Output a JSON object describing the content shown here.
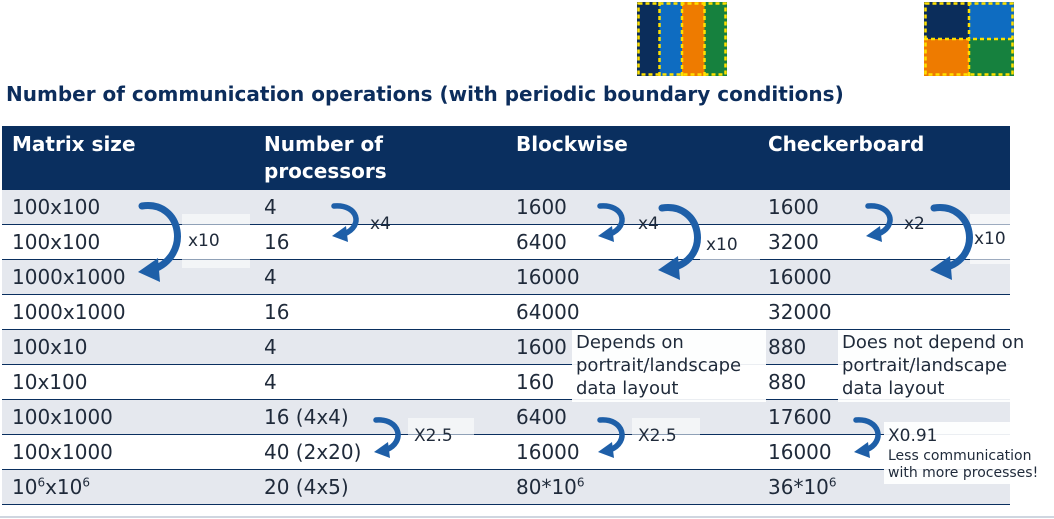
{
  "title": "Number of communication operations (with periodic boundary conditions)",
  "colors": {
    "header_bg": "#0a2f5f",
    "row_alt": "#e5e8ee",
    "arrow": "#1e5fa8",
    "blue_dark": "#0b2d5b",
    "blue": "#0e6cc1",
    "orange": "#ee7b00",
    "green": "#16813e",
    "yellow": "#ffe000"
  },
  "icons": {
    "blockwise": "blockwise-strips-icon",
    "checkerboard": "checkerboard-grid-icon"
  },
  "table": {
    "headers": [
      "Matrix size",
      "Number of processors",
      "Blockwise",
      "Checkerboard"
    ],
    "rows": [
      {
        "matrix": "100x100",
        "procs": "4",
        "blockwise": "1600",
        "checkerboard": "1600"
      },
      {
        "matrix": "100x100",
        "procs": "16",
        "blockwise": "6400",
        "checkerboard": "3200"
      },
      {
        "matrix": "1000x1000",
        "procs": "4",
        "blockwise": "16000",
        "checkerboard": "16000"
      },
      {
        "matrix": "1000x1000",
        "procs": "16",
        "blockwise": "64000",
        "checkerboard": "32000"
      },
      {
        "matrix": "100x10",
        "procs": "4",
        "blockwise": "1600",
        "checkerboard": "880"
      },
      {
        "matrix": "10x100",
        "procs": "4",
        "blockwise": "160",
        "checkerboard": "880"
      },
      {
        "matrix": "100x1000",
        "procs": "16 (4x4)",
        "blockwise": "6400",
        "checkerboard": "17600"
      },
      {
        "matrix": "100x1000",
        "procs": "40 (2x20)",
        "blockwise": "16000",
        "checkerboard": "16000"
      },
      {
        "matrix_base": "10",
        "matrix_exp": "6",
        "matrix_mid": "x10",
        "matrix_exp2": "6",
        "procs": "20 (4x5)",
        "blockwise_base": "80*10",
        "blockwise_exp": "6",
        "checkerboard_base": "36*10",
        "checkerboard_exp": "6"
      }
    ]
  },
  "annotations": {
    "x10_matrix": "x10",
    "x4_procs": "x4",
    "x4_blockwise": "x4",
    "x10_blockwise": "x10",
    "x2_checker": "x2",
    "x10_checker": "x10",
    "depends_line1": "Depends on",
    "depends_line2": "portrait/landscape",
    "depends_line3": "data layout",
    "not_depend_line1": "Does not depend on",
    "not_depend_line2": "portrait/landscape",
    "not_depend_line3": "data layout",
    "x25_procs": "X2.5",
    "x25_blockwise": "X2.5",
    "x091_checker": "X0.91",
    "less_comm_line1": "Less communication",
    "less_comm_line2": "with more processes!"
  }
}
